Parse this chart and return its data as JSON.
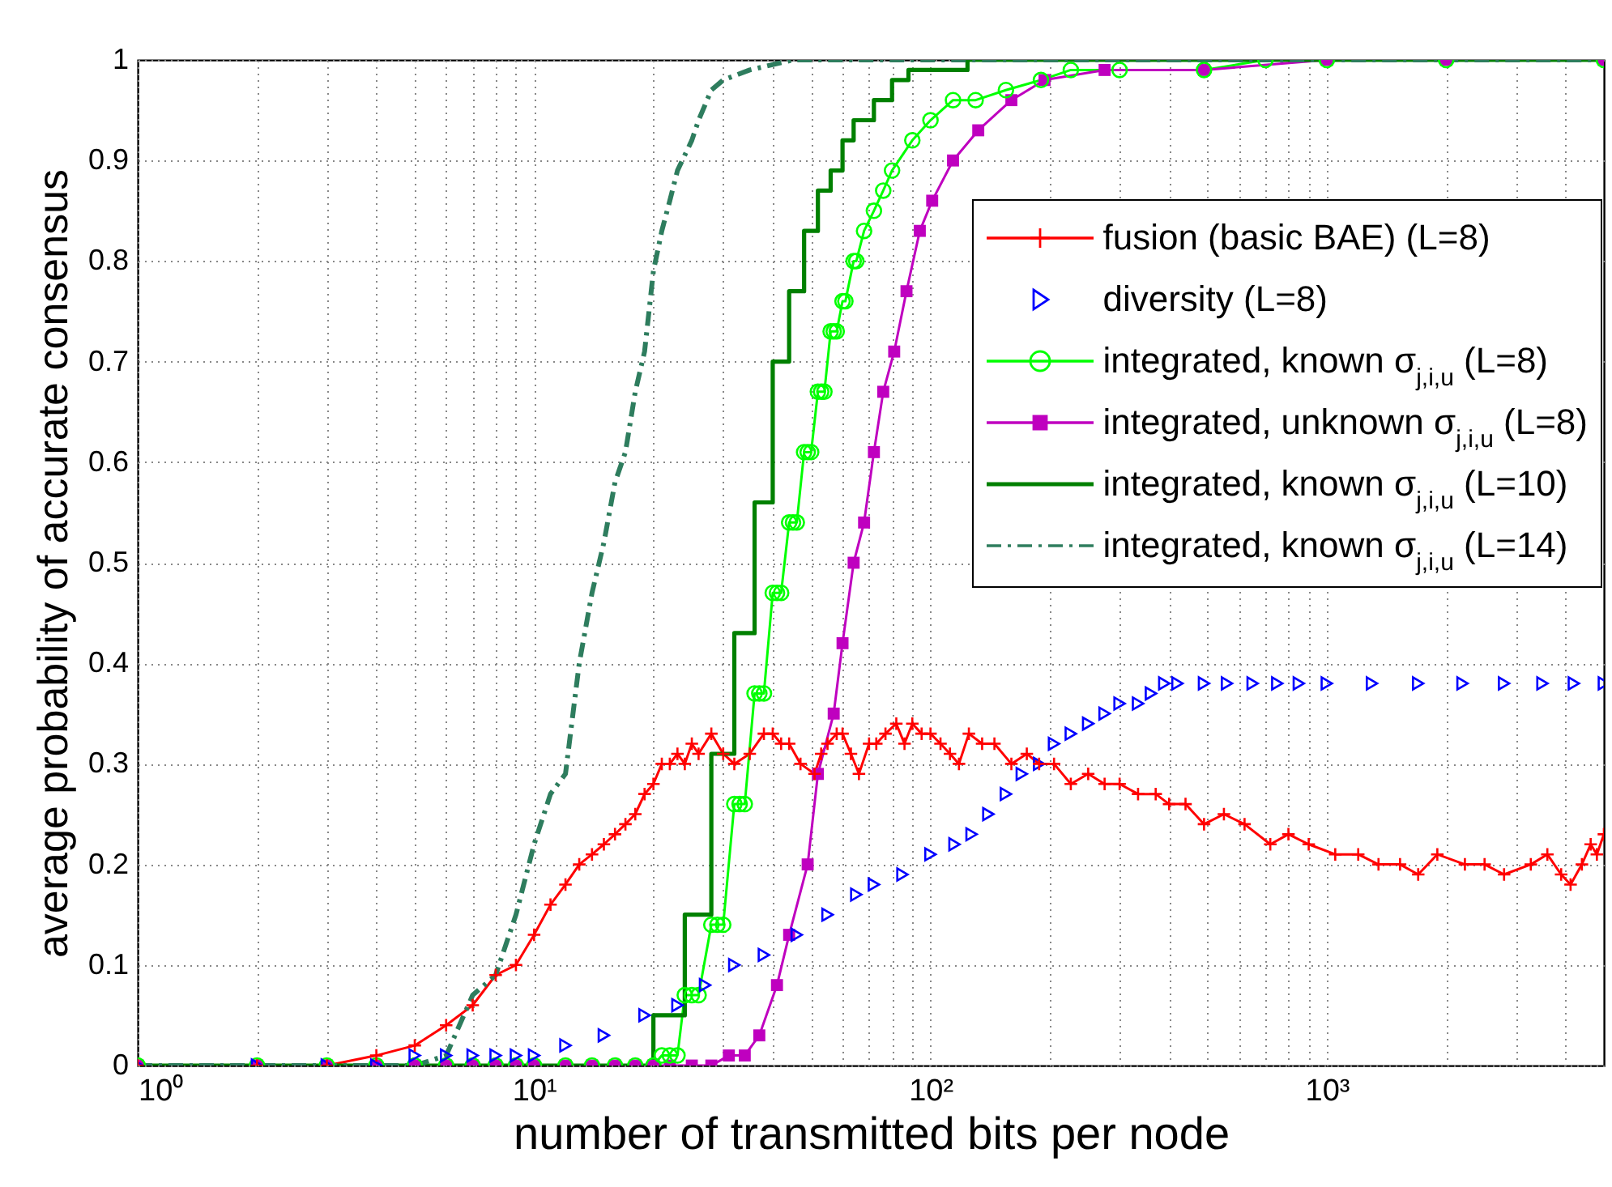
{
  "chart_data": {
    "type": "line",
    "xlabel": "number of transmitted bits per node",
    "ylabel": "average probability of accurate consensus",
    "log": "x",
    "grid": true,
    "legend": "top right",
    "xlim": [
      1,
      5000
    ],
    "xticks": [
      {
        "value": 1,
        "label": "10⁰"
      },
      {
        "value": 2,
        "label": null
      },
      {
        "value": 3,
        "label": null
      },
      {
        "value": 4,
        "label": null
      },
      {
        "value": 5,
        "label": null
      },
      {
        "value": 6,
        "label": null
      },
      {
        "value": 7,
        "label": null
      },
      {
        "value": 8,
        "label": null
      },
      {
        "value": 9,
        "label": null
      },
      {
        "value": 10,
        "label": "10¹"
      },
      {
        "value": 20,
        "label": null
      },
      {
        "value": 30,
        "label": null
      },
      {
        "value": 40,
        "label": null
      },
      {
        "value": 50,
        "label": null
      },
      {
        "value": 60,
        "label": null
      },
      {
        "value": 70,
        "label": null
      },
      {
        "value": 80,
        "label": null
      },
      {
        "value": 90,
        "label": null
      },
      {
        "value": 100,
        "label": "10²"
      },
      {
        "value": 200,
        "label": null
      },
      {
        "value": 300,
        "label": null
      },
      {
        "value": 400,
        "label": null
      },
      {
        "value": 500,
        "label": null
      },
      {
        "value": 600,
        "label": null
      },
      {
        "value": 700,
        "label": null
      },
      {
        "value": 800,
        "label": null
      },
      {
        "value": 900,
        "label": null
      },
      {
        "value": 1000,
        "label": "10³"
      },
      {
        "value": 2000,
        "label": null
      },
      {
        "value": 3000,
        "label": null
      },
      {
        "value": 4000,
        "label": null
      }
    ],
    "ylim": [
      0,
      1
    ],
    "yticks": [
      0,
      0.1,
      0.2,
      0.3,
      0.4,
      0.5,
      0.6,
      0.7,
      0.8,
      0.9,
      1
    ],
    "series": [
      {
        "name": "fusion (basic BAE) (L=8)",
        "marker": "cross",
        "color": "#ff0000",
        "x": [
          1,
          2,
          3,
          4,
          5,
          6,
          7,
          8,
          9,
          10,
          11,
          12,
          13,
          14,
          15,
          16,
          17,
          18,
          19,
          20,
          21,
          22,
          23,
          24,
          25,
          26,
          28,
          30,
          32,
          35,
          38,
          40,
          42,
          44,
          47,
          51,
          53,
          55,
          58,
          60,
          63,
          66,
          70,
          73,
          77,
          82,
          86,
          90,
          95,
          100,
          106,
          112,
          118,
          125,
          135,
          145,
          160,
          175,
          188,
          205,
          226,
          250,
          275,
          300,
          334,
          370,
          400,
          440,
          490,
          550,
          620,
          720,
          800,
          900,
          1050,
          1200,
          1350,
          1530,
          1700,
          1900,
          2230,
          2500,
          2800,
          3270,
          3600,
          3900,
          4120,
          4400,
          4630,
          4800,
          5000
        ],
        "values": [
          0,
          0,
          0,
          0.01,
          0.02,
          0.04,
          0.06,
          0.09,
          0.1,
          0.13,
          0.16,
          0.18,
          0.2,
          0.21,
          0.22,
          0.23,
          0.24,
          0.25,
          0.27,
          0.28,
          0.3,
          0.3,
          0.31,
          0.3,
          0.32,
          0.31,
          0.33,
          0.31,
          0.3,
          0.31,
          0.33,
          0.33,
          0.32,
          0.32,
          0.3,
          0.29,
          0.31,
          0.32,
          0.33,
          0.33,
          0.31,
          0.29,
          0.32,
          0.32,
          0.33,
          0.34,
          0.32,
          0.34,
          0.33,
          0.33,
          0.32,
          0.31,
          0.3,
          0.33,
          0.32,
          0.32,
          0.3,
          0.31,
          0.3,
          0.3,
          0.28,
          0.29,
          0.28,
          0.28,
          0.27,
          0.27,
          0.26,
          0.26,
          0.24,
          0.25,
          0.24,
          0.22,
          0.23,
          0.22,
          0.21,
          0.21,
          0.2,
          0.2,
          0.19,
          0.21,
          0.2,
          0.2,
          0.19,
          0.2,
          0.21,
          0.19,
          0.18,
          0.2,
          0.22,
          0.21,
          0.23
        ]
      },
      {
        "name": "diversity (L=8)",
        "type": "scatter",
        "marker": "triangle",
        "color": "#0000ff",
        "x": [
          1,
          2,
          3,
          4,
          5,
          6,
          7,
          8,
          9,
          10,
          12,
          15,
          19,
          23,
          27,
          32,
          38,
          46,
          55,
          65,
          72,
          85,
          100,
          115,
          127,
          140,
          155,
          170,
          188,
          205,
          226,
          250,
          275,
          300,
          334,
          360,
          389,
          420,
          490,
          560,
          650,
          750,
          850,
          1000,
          1300,
          1700,
          2200,
          2800,
          3500,
          4200,
          5000
        ],
        "values": [
          0,
          0,
          0,
          0,
          0.01,
          0.01,
          0.01,
          0.01,
          0.01,
          0.01,
          0.02,
          0.03,
          0.05,
          0.06,
          0.08,
          0.1,
          0.11,
          0.13,
          0.15,
          0.17,
          0.18,
          0.19,
          0.21,
          0.22,
          0.23,
          0.25,
          0.27,
          0.29,
          0.3,
          0.32,
          0.33,
          0.34,
          0.35,
          0.36,
          0.36,
          0.37,
          0.38,
          0.38,
          0.38,
          0.38,
          0.38,
          0.38,
          0.38,
          0.38,
          0.38,
          0.38,
          0.38,
          0.38,
          0.38,
          0.38,
          0.38
        ]
      },
      {
        "name": "integrated, known σ$_{j,i,u}$ (L=8)",
        "marker": "circle",
        "color": "#00ff00",
        "x": [
          1,
          2,
          3,
          4,
          5,
          6,
          7,
          8,
          9,
          10,
          12,
          14,
          16,
          18,
          20,
          21,
          22,
          23,
          24,
          25,
          26,
          28,
          29,
          30,
          32,
          33,
          34,
          36,
          37,
          38,
          40,
          41,
          42,
          44,
          45,
          46,
          48,
          49,
          50,
          52,
          53,
          54,
          56,
          57,
          58,
          60,
          61,
          64,
          65,
          68,
          72,
          76,
          80,
          90,
          100,
          114,
          130,
          155,
          190,
          226,
          300,
          490,
          700,
          1000,
          2000,
          5000
        ],
        "values": [
          0,
          0,
          0,
          0,
          0,
          0,
          0,
          0,
          0,
          0,
          0,
          0,
          0,
          0,
          0,
          0.01,
          0.01,
          0.01,
          0.07,
          0.07,
          0.07,
          0.14,
          0.14,
          0.14,
          0.26,
          0.26,
          0.26,
          0.37,
          0.37,
          0.37,
          0.47,
          0.47,
          0.47,
          0.54,
          0.54,
          0.54,
          0.61,
          0.61,
          0.61,
          0.67,
          0.67,
          0.67,
          0.73,
          0.73,
          0.73,
          0.76,
          0.76,
          0.8,
          0.8,
          0.83,
          0.85,
          0.87,
          0.89,
          0.92,
          0.94,
          0.96,
          0.96,
          0.97,
          0.98,
          0.99,
          0.99,
          0.99,
          1,
          1,
          1,
          1
        ]
      },
      {
        "name": "integrated, unknown σ$_{j,i,u}$ (L=8)",
        "marker": "square",
        "color": "#bf00bf",
        "x": [
          1,
          2,
          3,
          4,
          5,
          6,
          7,
          8,
          9,
          10,
          12,
          14,
          16,
          18,
          20,
          22,
          25,
          28,
          31,
          34,
          37,
          41,
          44,
          49,
          52,
          57,
          60,
          64,
          68,
          72,
          76,
          81,
          87,
          94,
          101,
          114,
          132,
          160,
          194,
          275,
          490,
          1000,
          2000,
          5000
        ],
        "values": [
          0,
          0,
          0,
          0,
          0,
          0,
          0,
          0,
          0,
          0,
          0,
          0,
          0,
          0,
          0,
          0,
          0,
          0,
          0.01,
          0.01,
          0.03,
          0.08,
          0.13,
          0.2,
          0.29,
          0.35,
          0.42,
          0.5,
          0.54,
          0.61,
          0.67,
          0.71,
          0.77,
          0.83,
          0.86,
          0.9,
          0.93,
          0.96,
          0.98,
          0.99,
          0.99,
          1,
          1,
          1
        ]
      },
      {
        "name": "integrated, known σ$_{j,i,u}$ (L=10)",
        "type": "step",
        "color": "#008000",
        "x": [
          1,
          20,
          24,
          28,
          32,
          36,
          40,
          44,
          48,
          52,
          56,
          60,
          64,
          72,
          80,
          88,
          100,
          124,
          5000
        ],
        "values": [
          0,
          0.05,
          0.15,
          0.31,
          0.43,
          0.56,
          0.7,
          0.77,
          0.83,
          0.87,
          0.89,
          0.92,
          0.94,
          0.96,
          0.98,
          0.99,
          0.99,
          1,
          1
        ]
      },
      {
        "name": "integrated, known σ$_{j,i,u}$ (L=14)",
        "line_style": "dashed",
        "color": "#2e7d5e",
        "x": [
          1,
          2,
          3,
          4,
          5,
          6,
          7,
          8,
          9,
          10,
          11,
          12,
          13,
          14,
          15,
          16,
          17,
          18,
          19,
          20,
          21,
          22,
          23,
          25,
          26,
          28,
          30,
          35,
          45,
          100,
          1000,
          5000
        ],
        "values": [
          0,
          0,
          0,
          0,
          0,
          0.01,
          0.07,
          0.09,
          0.15,
          0.22,
          0.27,
          0.29,
          0.4,
          0.47,
          0.52,
          0.58,
          0.61,
          0.67,
          0.71,
          0.79,
          0.83,
          0.86,
          0.89,
          0.92,
          0.94,
          0.97,
          0.98,
          0.99,
          1,
          1,
          1,
          1
        ]
      }
    ]
  }
}
